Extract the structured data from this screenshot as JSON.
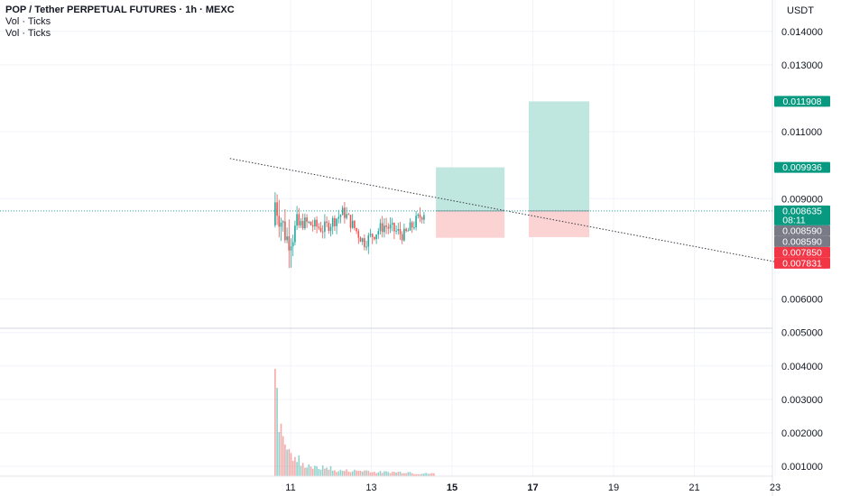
{
  "header": {
    "title": "POP / Tether PERPETUAL FUTURES · 1h · MEXC",
    "indicators": [
      "Vol · Ticks",
      "Vol · Ticks"
    ]
  },
  "price_axis": {
    "currency": "USDT",
    "tick_labels": [
      "0.014000",
      "0.013000",
      "0.011000",
      "0.009000",
      "0.006000",
      "0.005000",
      "0.004000",
      "0.003000",
      "0.002000",
      "0.001000"
    ]
  },
  "time_axis": {
    "tick_labels": [
      "11",
      "13",
      "15",
      "17",
      "19",
      "21",
      "23"
    ],
    "bold_labels": [
      "15",
      "17"
    ]
  },
  "price_tags": [
    {
      "text": "0.011908",
      "color": "#089981"
    },
    {
      "text": "0.009936",
      "color": "#089981"
    },
    {
      "text": "0.008635",
      "sub": "08:11",
      "color": "#089981"
    },
    {
      "text": "0.008590",
      "color": "#787b86"
    },
    {
      "text": "0.008590",
      "color": "#787b86"
    },
    {
      "text": "0.007850",
      "color": "#f23645"
    },
    {
      "text": "0.007831",
      "color": "#f23645"
    }
  ],
  "colors": {
    "up": "#26a69a",
    "down": "#ef5350",
    "profit_zone": "#bfe6df",
    "loss_zone": "#fbd3d3",
    "grid": "#f0f3fa",
    "trendline": "#363a45",
    "last_price_line": "#26a69a"
  },
  "chart_data": {
    "type": "candlestick",
    "title": "POP / Tether PERPETUAL FUTURES · 1h · MEXC",
    "y_unit": "USDT",
    "ylim": [
      0.0005,
      0.0145
    ],
    "xlim_days": [
      9.5,
      23.5
    ],
    "last_price": 0.008635,
    "candles_approx": [
      {
        "day": 10.6,
        "open": 0.0082,
        "high": 0.0096,
        "low": 0.0066,
        "close": 0.0089
      },
      {
        "day": 10.9,
        "open": 0.0089,
        "high": 0.0091,
        "low": 0.007,
        "close": 0.0078
      },
      {
        "day": 11.3,
        "open": 0.0078,
        "high": 0.0088,
        "low": 0.0072,
        "close": 0.0083
      },
      {
        "day": 11.8,
        "open": 0.0083,
        "high": 0.009,
        "low": 0.0074,
        "close": 0.0081
      },
      {
        "day": 12.3,
        "open": 0.0081,
        "high": 0.009,
        "low": 0.0078,
        "close": 0.0086
      },
      {
        "day": 12.8,
        "open": 0.0086,
        "high": 0.0088,
        "low": 0.0073,
        "close": 0.0077
      },
      {
        "day": 13.3,
        "open": 0.0077,
        "high": 0.0086,
        "low": 0.0074,
        "close": 0.0082
      },
      {
        "day": 13.8,
        "open": 0.0082,
        "high": 0.0084,
        "low": 0.0076,
        "close": 0.0079
      },
      {
        "day": 14.3,
        "open": 0.0079,
        "high": 0.0087,
        "low": 0.0078,
        "close": 0.00863
      }
    ],
    "positions": [
      {
        "start_day": 14.6,
        "end_day": 16.3,
        "entry": 0.008635,
        "target": 0.009936,
        "stop": 0.007831
      },
      {
        "start_day": 16.9,
        "end_day": 18.4,
        "entry": 0.008635,
        "target": 0.011908,
        "stop": 0.00785
      }
    ],
    "trendline": {
      "from": {
        "day": 9.5,
        "price": 0.0102
      },
      "to": {
        "day": 23.5,
        "price": 0.007
      }
    },
    "volume_approx": {
      "days": [
        10.6,
        10.65,
        10.7,
        10.8,
        10.9,
        11.0,
        11.2,
        11.5,
        12.0,
        13.0,
        14.0,
        14.5
      ],
      "values": [
        0.0042,
        0.0016,
        0.0015,
        0.0012,
        0.0008,
        0.0006,
        0.0004,
        0.0003,
        0.0002,
        0.00015,
        0.0001,
        0.0001
      ]
    }
  }
}
